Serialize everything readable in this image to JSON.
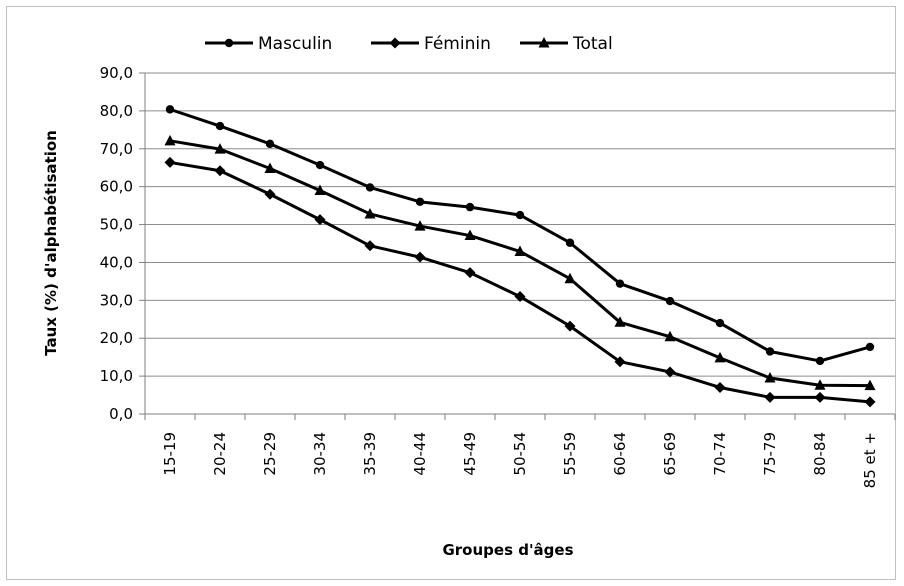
{
  "chart_data": {
    "type": "line",
    "title": "",
    "xlabel": "Groupes d'âges",
    "ylabel": "Taux (%) d'alphabétisation",
    "ylim": [
      0,
      90
    ],
    "y_ticks": [
      "0,0",
      "10,0",
      "20,0",
      "30,0",
      "40,0",
      "50,0",
      "60,0",
      "70,0",
      "80,0",
      "90,0"
    ],
    "grid": "horizontal",
    "legend_position": "top",
    "categories": [
      "15-19",
      "20-24",
      "25-29",
      "30-34",
      "35-39",
      "40-44",
      "45-49",
      "50-54",
      "55-59",
      "60-64",
      "65-69",
      "70-74",
      "75-79",
      "80-84",
      "85 et +"
    ],
    "series": [
      {
        "name": "Masculin",
        "marker": "circle",
        "color": "#000000",
        "values": [
          80.4,
          76.0,
          71.3,
          65.7,
          59.8,
          56.0,
          54.6,
          52.5,
          45.2,
          34.4,
          29.8,
          24.0,
          16.5,
          14.0,
          17.7
        ]
      },
      {
        "name": "Féminin",
        "marker": "diamond",
        "color": "#000000",
        "values": [
          66.4,
          64.2,
          58.0,
          51.3,
          44.4,
          41.4,
          37.3,
          31.0,
          23.2,
          13.8,
          11.1,
          7.0,
          4.4,
          4.4,
          3.2
        ]
      },
      {
        "name": "Total",
        "marker": "triangle",
        "color": "#000000",
        "values": [
          72.1,
          69.9,
          64.8,
          59.0,
          52.8,
          49.6,
          47.1,
          42.9,
          35.7,
          24.2,
          20.4,
          14.8,
          9.5,
          7.6,
          7.5
        ]
      }
    ]
  }
}
